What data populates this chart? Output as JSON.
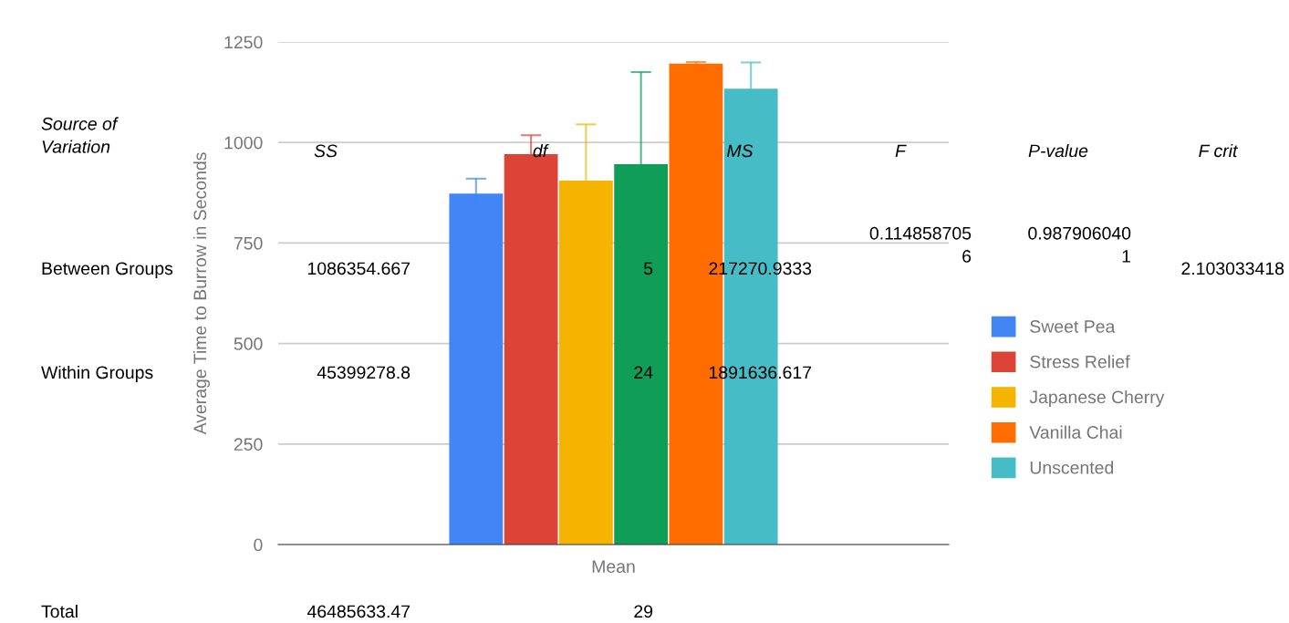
{
  "chart_data": {
    "type": "bar",
    "ylabel": "Average Time to Burrow in Seconds",
    "categories": [
      "Mean"
    ],
    "series": [
      {
        "name": "Sweet Pea",
        "color": "#4285f4",
        "values": [
          873
        ],
        "errors": [
          37
        ]
      },
      {
        "name": "Stress Relief",
        "color": "#db4437",
        "values": [
          971
        ],
        "errors": [
          47
        ]
      },
      {
        "name": "Japanese Cherry",
        "color": "#f4b400",
        "values": [
          905
        ],
        "errors": [
          140
        ]
      },
      {
        "color": "#0f9d58",
        "values": [
          946
        ],
        "errors": [
          229
        ]
      },
      {
        "name": "Vanilla Chai",
        "color": "#ff6d00",
        "values": [
          1196
        ],
        "errors": [
          4
        ]
      },
      {
        "name": "Unscented",
        "color": "#46bdc6",
        "values": [
          1134
        ],
        "errors": [
          65
        ]
      }
    ],
    "ylim": [
      0,
      1250
    ],
    "yticks": [
      0,
      250,
      500,
      750,
      1000,
      1250
    ],
    "grid": "y",
    "legend": "right",
    "annotations": [
      "Source of\nVariation",
      "SS",
      "df",
      "MS",
      "F",
      "P-value",
      "F crit",
      "Between Groups",
      "1086354.667",
      "5",
      "217270.9333",
      "0.114858705\n6",
      "0.987906040\n1",
      "2.103033418",
      "Within Groups",
      "45399278.8",
      "24",
      "1891636.617",
      "Total",
      "46485633.47",
      "29"
    ]
  }
}
